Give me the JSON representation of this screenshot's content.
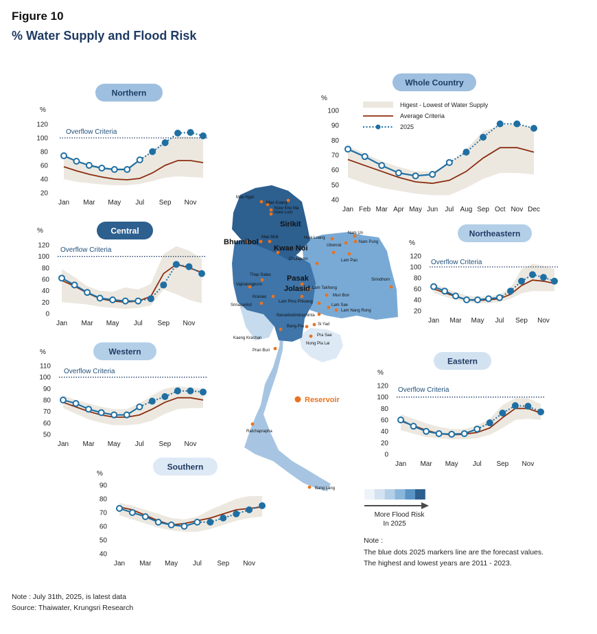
{
  "figure_label": "Figure 10",
  "title": "% Water Supply and Flood Risk",
  "footer": {
    "note": "Note : July 31th, 2025,  is latest data",
    "source": "Source: Thaiwater, Krungsri Research"
  },
  "note": {
    "heading": "Note :",
    "line1": "The blue dots 2025 markers line are the forecast values.",
    "line2": "The highest and lowest years are 2011 - 2023."
  },
  "legend": {
    "range": "Higest - Lowest of Water Supply",
    "average": "Average Criteria",
    "year": "2025"
  },
  "flood_scale": {
    "label_line1": "More Flood Risk",
    "label_line2": "In 2025",
    "colors": [
      "#eef3fa",
      "#d3e2f1",
      "#b3cfe8",
      "#8ab6db",
      "#5a93c4",
      "#2d5f8f"
    ]
  },
  "map": {
    "reservoir_label": "Reservoir",
    "reservoir_color": "#e8731f",
    "big_labels": [
      "Sirikit",
      "Bhumibol",
      "Kwae Noi",
      "Pasak",
      "Jolasid"
    ],
    "small_labels": [
      "Mae Ngat",
      "Mae Kuang",
      "Kiew Kho Ma",
      "Kiew Lom",
      "Mae Mok",
      "Huai Luang",
      "Nam Un",
      "Ubonrat",
      "Nam Pung",
      "Lam Pao",
      "Chulaporn",
      "Thap Salao",
      "Vajiralongkorn",
      "Krasiao",
      "Srinagarind",
      "Lam Takhong",
      "Mun Bon",
      "Lam Phra Phloeng",
      "Lam Sae",
      "Lam Nang Rong",
      "Sirindhorn",
      "Naruebodindrachinta",
      "Bang Pra",
      "Si Yad",
      "Pra Sae",
      "Nong Pla Lai",
      "Kaeng Krachan",
      "Pran Buri",
      "Ratchaprapha",
      "Bang Lang"
    ]
  },
  "colors": {
    "band": "#ece8e0",
    "average": "#8b2e0f",
    "year2025": "#1f6fa3",
    "criteria": "#1f3b63"
  },
  "chart_data": [
    {
      "type": "line",
      "title": "Northern",
      "ylabel": "%",
      "categories": [
        "Jan",
        "Feb",
        "Mar",
        "Apr",
        "May",
        "Jun",
        "Jul",
        "Aug",
        "Sep",
        "Oct",
        "Nov",
        "Dec"
      ],
      "tick_labels": [
        "Jan",
        "Mar",
        "May",
        "Jul",
        "Sep",
        "Nov"
      ],
      "ylim": [
        20,
        120
      ],
      "yticks": [
        20,
        40,
        60,
        80,
        100,
        120
      ],
      "criteria": {
        "label": "Overflow Criteria",
        "value": 100
      },
      "band_high": [
        75,
        68,
        62,
        58,
        56,
        57,
        68,
        82,
        96,
        102,
        102,
        100
      ],
      "band_low": [
        40,
        36,
        34,
        32,
        31,
        31,
        33,
        37,
        42,
        44,
        43,
        42
      ],
      "average": [
        58,
        52,
        47,
        43,
        40,
        39,
        41,
        49,
        60,
        67,
        67,
        64
      ],
      "year2025": [
        74,
        66,
        60,
        56,
        54,
        54,
        68,
        80,
        93,
        107,
        108,
        103
      ]
    },
    {
      "type": "line",
      "title": "Whole Country",
      "ylabel": "%",
      "categories": [
        "Jan",
        "Feb",
        "Mar",
        "Apr",
        "May",
        "Jun",
        "Jul",
        "Aug",
        "Sep",
        "Oct",
        "Nov",
        "Dec"
      ],
      "tick_labels": [
        "Jan",
        "Feb",
        "Mar",
        "Apr",
        "May",
        "Jun",
        "Jul",
        "Aug",
        "Sep",
        "Oct",
        "Nov",
        "Dec"
      ],
      "ylim": [
        40,
        100
      ],
      "yticks": [
        40,
        50,
        60,
        70,
        80,
        90,
        100
      ],
      "band_high": [
        76,
        71,
        66,
        62,
        59,
        59,
        64,
        74,
        86,
        90,
        91,
        88
      ],
      "band_low": [
        55,
        51,
        48,
        46,
        44,
        43,
        43,
        48,
        54,
        58,
        58,
        57
      ],
      "average": [
        67,
        63,
        59,
        55,
        52,
        51,
        53,
        59,
        68,
        75,
        75,
        72
      ],
      "year2025": [
        74,
        69,
        63,
        58,
        56,
        57,
        65,
        72,
        82,
        91,
        91,
        88
      ]
    },
    {
      "type": "line",
      "title": "Central",
      "ylabel": "%",
      "categories": [
        "Jan",
        "Feb",
        "Mar",
        "Apr",
        "May",
        "Jun",
        "Jul",
        "Aug",
        "Sep",
        "Oct",
        "Nov",
        "Dec"
      ],
      "tick_labels": [
        "Jan",
        "Mar",
        "May",
        "Jul",
        "Sep",
        "Nov"
      ],
      "ylim": [
        0,
        120
      ],
      "yticks": [
        0,
        20,
        40,
        60,
        80,
        100,
        120
      ],
      "criteria": {
        "label": "Overflow Criteria",
        "value": 100
      },
      "band_high": [
        78,
        64,
        48,
        40,
        38,
        46,
        42,
        52,
        104,
        118,
        110,
        96
      ],
      "band_low": [
        20,
        18,
        16,
        12,
        10,
        8,
        10,
        14,
        42,
        34,
        24,
        18
      ],
      "average": [
        58,
        48,
        36,
        26,
        22,
        20,
        22,
        30,
        70,
        86,
        80,
        72
      ],
      "year2025": [
        62,
        50,
        37,
        27,
        24,
        22,
        22,
        26,
        50,
        86,
        82,
        70
      ]
    },
    {
      "type": "line",
      "title": "Northeastern",
      "ylabel": "%",
      "categories": [
        "Jan",
        "Feb",
        "Mar",
        "Apr",
        "May",
        "Jun",
        "Jul",
        "Aug",
        "Sep",
        "Oct",
        "Nov",
        "Dec"
      ],
      "tick_labels": [
        "Jan",
        "Mar",
        "May",
        "Jul",
        "Sep",
        "Nov"
      ],
      "ylim": [
        20,
        120
      ],
      "yticks": [
        20,
        40,
        60,
        80,
        100,
        120
      ],
      "criteria": {
        "label": "Overflow Criteria",
        "value": 100
      },
      "band_high": [
        70,
        62,
        54,
        48,
        46,
        46,
        50,
        62,
        96,
        106,
        102,
        96
      ],
      "band_low": [
        52,
        46,
        40,
        36,
        34,
        34,
        36,
        42,
        52,
        56,
        56,
        56
      ],
      "average": [
        60,
        53,
        46,
        40,
        39,
        40,
        42,
        50,
        66,
        76,
        74,
        70
      ],
      "year2025": [
        64,
        56,
        47,
        40,
        40,
        42,
        44,
        56,
        74,
        86,
        81,
        74
      ]
    },
    {
      "type": "line",
      "title": "Western",
      "ylabel": "%",
      "categories": [
        "Jan",
        "Feb",
        "Mar",
        "Apr",
        "May",
        "Jun",
        "Jul",
        "Aug",
        "Sep",
        "Oct",
        "Nov",
        "Dec"
      ],
      "tick_labels": [
        "Jan",
        "Mar",
        "May",
        "Jul",
        "Sep",
        "Nov"
      ],
      "ylim": [
        50,
        110
      ],
      "yticks": [
        50,
        60,
        70,
        80,
        90,
        100,
        110
      ],
      "criteria": {
        "label": "Overflow Criteria",
        "value": 100
      },
      "band_high": [
        84,
        80,
        77,
        74,
        72,
        72,
        77,
        84,
        90,
        92,
        91,
        90
      ],
      "band_low": [
        73,
        68,
        63,
        60,
        58,
        58,
        59,
        62,
        68,
        72,
        73,
        73
      ],
      "average": [
        78,
        74,
        70,
        67,
        65,
        65,
        67,
        72,
        78,
        82,
        82,
        80
      ],
      "year2025": [
        80,
        77,
        72,
        69,
        67,
        67,
        74,
        79,
        83,
        88,
        88,
        87
      ]
    },
    {
      "type": "line",
      "title": "Eastern",
      "ylabel": "%",
      "categories": [
        "Jan",
        "Feb",
        "Mar",
        "Apr",
        "May",
        "Jun",
        "Jul",
        "Aug",
        "Sep",
        "Oct",
        "Nov",
        "Dec"
      ],
      "tick_labels": [
        "Jan",
        "Mar",
        "May",
        "Jul",
        "Sep",
        "Nov"
      ],
      "ylim": [
        0,
        120
      ],
      "yticks": [
        0,
        20,
        40,
        60,
        80,
        100,
        120
      ],
      "criteria": {
        "label": "Overflow Criteria",
        "value": 100
      },
      "band_high": [
        70,
        62,
        54,
        48,
        44,
        44,
        50,
        62,
        86,
        98,
        98,
        88
      ],
      "band_low": [
        42,
        36,
        30,
        28,
        26,
        26,
        28,
        34,
        46,
        60,
        62,
        60
      ],
      "average": [
        58,
        50,
        42,
        36,
        34,
        35,
        38,
        46,
        64,
        80,
        80,
        72
      ],
      "year2025": [
        60,
        49,
        40,
        36,
        35,
        36,
        44,
        55,
        72,
        85,
        84,
        74
      ]
    },
    {
      "type": "line",
      "title": "Southern",
      "ylabel": "%",
      "categories": [
        "Jan",
        "Feb",
        "Mar",
        "Apr",
        "May",
        "Jun",
        "Jul",
        "Aug",
        "Sep",
        "Oct",
        "Nov",
        "Dec"
      ],
      "tick_labels": [
        "Jan",
        "Mar",
        "May",
        "Jul",
        "Sep",
        "Nov"
      ],
      "ylim": [
        40,
        90
      ],
      "yticks": [
        40,
        50,
        60,
        70,
        80,
        90
      ],
      "band_high": [
        77,
        75,
        72,
        69,
        66,
        65,
        67,
        72,
        76,
        80,
        82,
        82
      ],
      "band_low": [
        68,
        65,
        62,
        59,
        57,
        56,
        56,
        58,
        61,
        64,
        66,
        67
      ],
      "average": [
        74,
        72,
        68,
        64,
        61,
        62,
        64,
        66,
        69,
        72,
        73,
        74
      ],
      "year2025": [
        73,
        70,
        67,
        63,
        61,
        60,
        63,
        63,
        66,
        69,
        72,
        75
      ]
    }
  ]
}
